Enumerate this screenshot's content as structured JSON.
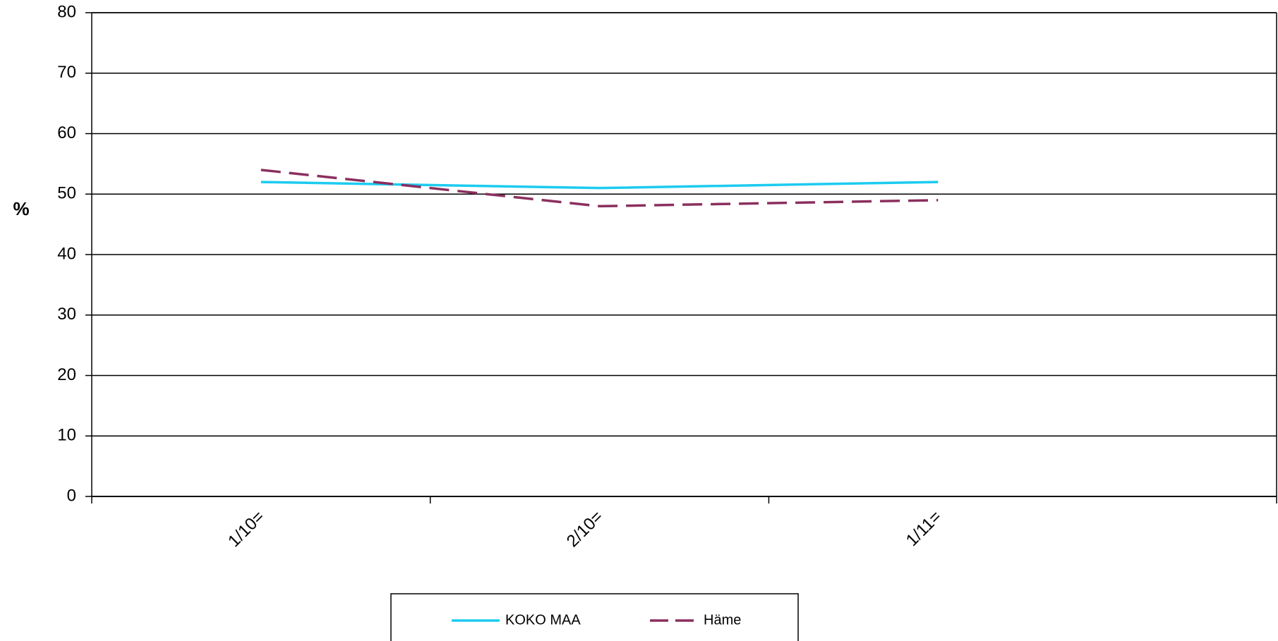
{
  "chart_data": {
    "type": "line",
    "ylabel": "%",
    "xlabel": "",
    "title": "",
    "categories": [
      "1/10=",
      "2/10=",
      "1/11="
    ],
    "ylim": [
      0,
      80
    ],
    "yticks": [
      0,
      10,
      20,
      30,
      40,
      50,
      60,
      70,
      80
    ],
    "grid": true,
    "legend_position": "bottom",
    "series": [
      {
        "name": "KOKO MAA",
        "values": [
          52,
          51,
          52
        ],
        "color": "#1ccbf0",
        "dash": "solid"
      },
      {
        "name": "Häme",
        "values": [
          54,
          48,
          49
        ],
        "color": "#8b2f5e",
        "dash": "dashed"
      }
    ]
  }
}
